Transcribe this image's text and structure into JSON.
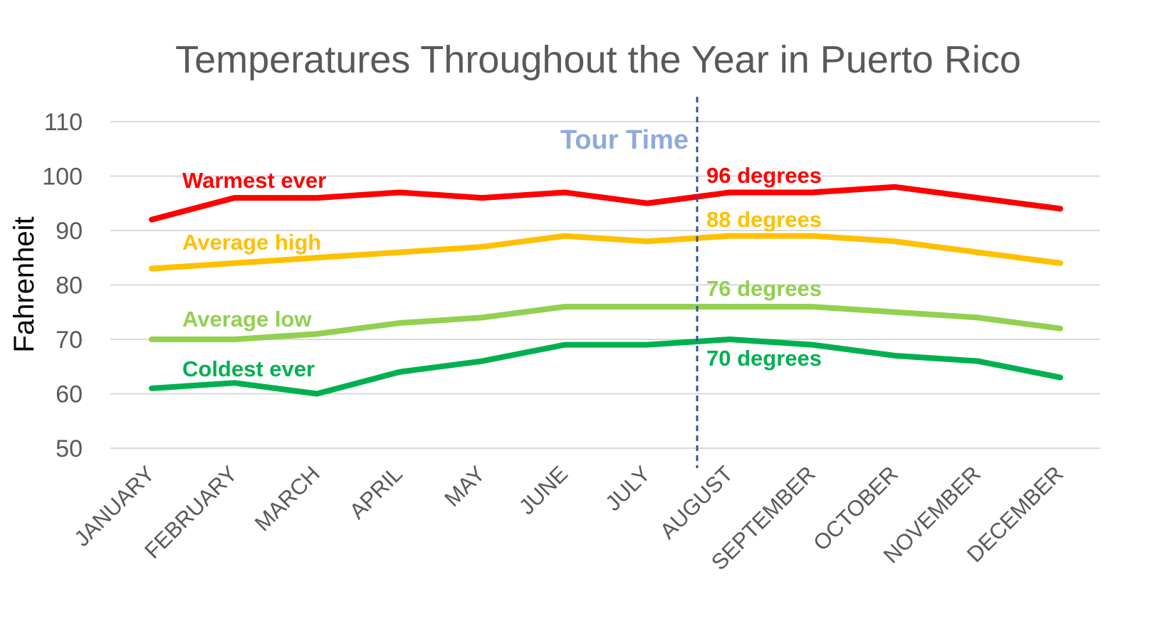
{
  "chart_data": {
    "type": "line",
    "title": "Temperatures Throughout the Year in Puerto Rico",
    "ylabel": "Fahrenheit",
    "xlabel": "",
    "ylim": [
      50,
      110
    ],
    "yticks": [
      "110",
      "100",
      "90",
      "80",
      "70",
      "60",
      "50"
    ],
    "grid": true,
    "categories": [
      "JANUARY",
      "FEBRUARY",
      "MARCH",
      "APRIL",
      "MAY",
      "JUNE",
      "JULY",
      "AUGUST",
      "SEPTEMBER",
      "OCTOBER",
      "NOVEMBER",
      "DECEMBER"
    ],
    "series": [
      {
        "name": "Warmest ever",
        "color": "#ff0000",
        "values": [
          92,
          96,
          96,
          97,
          96,
          97,
          95,
          97,
          97,
          98,
          96,
          94
        ]
      },
      {
        "name": "Average high",
        "color": "#ffc000",
        "values": [
          83,
          84,
          85,
          86,
          87,
          89,
          88,
          89,
          89,
          88,
          86,
          84
        ]
      },
      {
        "name": "Average low",
        "color": "#92d050",
        "values": [
          70,
          70,
          71,
          73,
          74,
          76,
          76,
          76,
          76,
          75,
          74,
          72
        ]
      },
      {
        "name": "Coldest ever",
        "color": "#00b050",
        "values": [
          61,
          62,
          60,
          64,
          66,
          69,
          69,
          70,
          69,
          67,
          66,
          63
        ]
      }
    ],
    "annotations": {
      "tour_label": "Tour Time",
      "tour_color": "#8faadc",
      "tour_line_color": "#2f5597",
      "tour_position": "between JULY and AUGUST",
      "callouts": [
        {
          "text": "96 degrees",
          "color": "#ff0000"
        },
        {
          "text": "88 degrees",
          "color": "#ffc000"
        },
        {
          "text": "76 degrees",
          "color": "#92d050"
        },
        {
          "text": "70 degrees",
          "color": "#00b050"
        }
      ]
    }
  }
}
